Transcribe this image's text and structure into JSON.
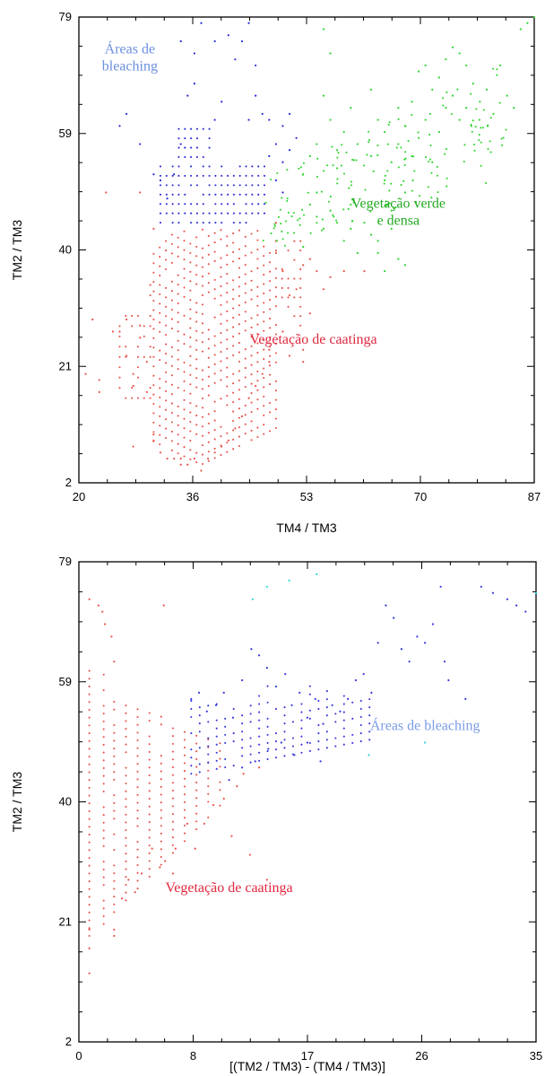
{
  "chart_data": [
    {
      "type": "scatter",
      "xlabel": "TM4 / TM3",
      "ylabel": "TM2 / TM3",
      "xlim": [
        20,
        87
      ],
      "ylim": [
        2,
        79
      ],
      "xticks": [
        "20",
        "36",
        "53",
        "70",
        "87"
      ],
      "yticks": [
        "2",
        "21",
        "40",
        "59",
        "79"
      ],
      "grid": false,
      "legend": "none",
      "annotations": [
        {
          "text_lines": [
            "Áreas de",
            "bleaching"
          ],
          "x": 27.5,
          "y": 73,
          "color": "#6b8fe0"
        },
        {
          "text_lines": [
            "Vegetação verde",
            "e densa"
          ],
          "x": 67,
          "y": 47.5,
          "color": "#22a822"
        },
        {
          "text_lines": [
            "Vegetação de caatinga"
          ],
          "x": 54.5,
          "y": 25,
          "color": "#e0283f"
        }
      ],
      "series": [
        {
          "color": "#e8534a",
          "cloud": "caatinga",
          "points": [
            [
              21,
              20
            ],
            [
              22,
              29
            ],
            [
              23,
              17
            ],
            [
              23,
              19
            ],
            [
              24,
              50
            ],
            [
              25,
              27
            ],
            [
              26,
              27
            ],
            [
              27,
              29
            ],
            [
              27,
              23
            ],
            [
              28,
              20
            ],
            [
              28,
              18
            ],
            [
              28,
              8
            ],
            [
              29,
              50
            ],
            [
              29,
              26
            ],
            [
              29,
              28
            ],
            [
              30,
              22
            ],
            [
              30,
              17
            ],
            [
              31,
              44
            ],
            [
              31,
              10
            ],
            [
              31,
              9
            ],
            [
              32,
              7
            ],
            [
              33,
              6
            ],
            [
              34,
              6
            ],
            [
              35,
              6
            ],
            [
              35,
              5
            ],
            [
              36,
              5
            ],
            [
              37,
              6
            ],
            [
              38,
              4
            ],
            [
              39,
              6
            ],
            [
              40,
              7
            ],
            [
              41,
              8
            ],
            [
              42,
              9
            ],
            [
              43,
              11
            ],
            [
              44,
              13
            ],
            [
              45,
              16
            ],
            [
              46,
              18
            ],
            [
              47,
              20
            ],
            [
              48,
              22
            ],
            [
              48,
              24
            ],
            [
              49,
              25
            ],
            [
              50,
              27
            ],
            [
              51,
              23
            ],
            [
              53,
              22
            ],
            [
              53,
              24
            ],
            [
              54,
              30
            ],
            [
              56,
              34
            ],
            [
              57,
              36
            ],
            [
              59,
              37
            ],
            [
              62,
              37
            ],
            [
              49,
              40
            ],
            [
              49,
              45
            ],
            [
              50,
              37
            ],
            [
              51,
              33
            ],
            [
              52,
              34
            ],
            [
              53,
              38
            ],
            [
              54,
              39
            ],
            [
              55,
              37
            ]
          ]
        },
        {
          "color": "#2a2ad8",
          "cloud": "bleaching",
          "points": [
            [
              26,
              61
            ],
            [
              27,
              63
            ],
            [
              29,
              58
            ],
            [
              31,
              53
            ],
            [
              32,
              52
            ],
            [
              33,
              49
            ],
            [
              34,
              53
            ],
            [
              35,
              58
            ],
            [
              35,
              75
            ],
            [
              36,
              66
            ],
            [
              37,
              73
            ],
            [
              37,
              68
            ],
            [
              38,
              78
            ],
            [
              40,
              75
            ],
            [
              40,
              62
            ],
            [
              41,
              65
            ],
            [
              42,
              76
            ],
            [
              43,
              72
            ],
            [
              44,
              75
            ],
            [
              45,
              78
            ],
            [
              45,
              62
            ],
            [
              46,
              71
            ],
            [
              46,
              66
            ],
            [
              47,
              63
            ],
            [
              48,
              62
            ],
            [
              49,
              58
            ],
            [
              50,
              61
            ],
            [
              50,
              55
            ],
            [
              51,
              57
            ],
            [
              51,
              63
            ],
            [
              52,
              59
            ],
            [
              48,
              56
            ],
            [
              49,
              52
            ],
            [
              50,
              50
            ]
          ]
        },
        {
          "color": "#2ed42e",
          "cloud": "vegetacao",
          "points": [
            [
              53,
              53
            ],
            [
              54,
              56
            ],
            [
              55,
              50
            ],
            [
              55,
              58
            ],
            [
              56,
              77
            ],
            [
              56,
              66
            ],
            [
              57,
              62
            ],
            [
              57,
              73
            ],
            [
              58,
              57
            ],
            [
              58,
              54
            ],
            [
              59,
              60
            ],
            [
              60,
              48
            ],
            [
              60,
              64
            ],
            [
              61,
              58
            ],
            [
              62,
              45
            ],
            [
              63,
              56
            ],
            [
              63,
              67
            ],
            [
              64,
              62
            ],
            [
              64,
              42
            ],
            [
              65,
              60
            ],
            [
              65,
              52
            ],
            [
              66,
              55
            ],
            [
              66,
              47
            ],
            [
              67,
              64
            ],
            [
              67,
              58
            ],
            [
              68,
              61
            ],
            [
              68,
              50
            ],
            [
              69,
              65
            ],
            [
              69,
              56
            ],
            [
              70,
              70
            ],
            [
              70,
              59
            ],
            [
              71,
              71
            ],
            [
              71,
              62
            ],
            [
              72,
              67
            ],
            [
              72,
              55
            ],
            [
              73,
              69
            ],
            [
              73,
              60
            ],
            [
              74,
              72
            ],
            [
              74,
              64
            ],
            [
              75,
              74
            ],
            [
              75,
              66
            ],
            [
              76,
              73
            ],
            [
              76,
              62
            ],
            [
              77,
              71
            ],
            [
              77,
              64
            ],
            [
              78,
              68
            ],
            [
              79,
              65
            ],
            [
              80,
              67
            ],
            [
              81,
              63
            ],
            [
              82,
              71
            ],
            [
              83,
              66
            ],
            [
              84,
              64
            ],
            [
              85,
              77
            ],
            [
              86,
              78
            ],
            [
              87,
              79
            ],
            [
              60,
              44
            ],
            [
              61,
              40
            ],
            [
              59,
              42
            ],
            [
              58,
              45
            ],
            [
              57,
              47
            ],
            [
              56,
              44
            ],
            [
              55,
              46
            ],
            [
              54,
              48
            ],
            [
              53,
              41
            ],
            [
              66,
              44
            ],
            [
              67,
              39
            ],
            [
              68,
              38
            ],
            [
              65,
              37
            ],
            [
              64,
              40
            ],
            [
              63,
              43
            ]
          ]
        }
      ]
    },
    {
      "type": "scatter",
      "xlabel": "[(TM2 / TM3) - (TM4 / TM3)]",
      "ylabel": "TM2 / TM3",
      "xlim": [
        0,
        35
      ],
      "ylim": [
        2,
        79
      ],
      "xticks": [
        "0",
        "8",
        "17",
        "26",
        "35"
      ],
      "yticks": [
        "2",
        "21",
        "40",
        "59",
        "79"
      ],
      "grid": false,
      "legend": "none",
      "annotations": [
        {
          "text_lines": [
            "Áreas de bleaching"
          ],
          "x": 26.5,
          "y": 52,
          "color": "#7a9be6"
        },
        {
          "text_lines": [
            "Vegetação de caatinga"
          ],
          "x": 11.5,
          "y": 26,
          "color": "#e0283f"
        }
      ],
      "series": [
        {
          "color": "#e8534a",
          "cloud": "caatinga",
          "points": [
            [
              0.8,
              73
            ],
            [
              0.8,
              17
            ],
            [
              0.8,
              13
            ],
            [
              0.8,
              20
            ],
            [
              1.5,
              72
            ],
            [
              1.8,
              71
            ],
            [
              2,
              69
            ],
            [
              2.5,
              67
            ],
            [
              2.7,
              63
            ],
            [
              2.7,
              20
            ],
            [
              2.7,
              19
            ],
            [
              3.3,
              25
            ],
            [
              3.8,
              28
            ],
            [
              4.3,
              26
            ],
            [
              4.8,
              29
            ],
            [
              5.6,
              33
            ],
            [
              6.2,
              30
            ],
            [
              6.5,
              72
            ],
            [
              6.6,
              31
            ],
            [
              7.2,
              29
            ],
            [
              7.4,
              33
            ],
            [
              8.3,
              37
            ],
            [
              8.9,
              33
            ],
            [
              9.6,
              37
            ],
            [
              10.3,
              40
            ],
            [
              11.1,
              41
            ],
            [
              11.7,
              35
            ],
            [
              12.1,
              43
            ],
            [
              12.6,
              45
            ],
            [
              13.1,
              32
            ],
            [
              13.8,
              46
            ],
            [
              14.4,
              28
            ]
          ]
        },
        {
          "color": "#3636dc",
          "cloud": "bleaching",
          "points": [
            [
              8.6,
              57
            ],
            [
              9.2,
              58
            ],
            [
              9.8,
              55
            ],
            [
              10.5,
              56
            ],
            [
              11.1,
              58
            ],
            [
              11.8,
              54
            ],
            [
              12.5,
              60
            ],
            [
              13.2,
              65
            ],
            [
              13.8,
              64
            ],
            [
              14.4,
              62
            ],
            [
              15.1,
              59
            ],
            [
              15.8,
              61
            ],
            [
              16.3,
              56
            ],
            [
              16.9,
              58
            ],
            [
              17.5,
              54
            ],
            [
              18.1,
              57
            ],
            [
              18.7,
              53
            ],
            [
              19.4,
              56
            ],
            [
              20,
              55
            ],
            [
              20.6,
              57
            ],
            [
              21.2,
              60
            ],
            [
              21.8,
              61
            ],
            [
              22.4,
              58
            ],
            [
              22.9,
              66
            ],
            [
              23.5,
              72
            ],
            [
              24.1,
              70
            ],
            [
              24.7,
              65
            ],
            [
              25.3,
              63
            ],
            [
              25.9,
              67
            ],
            [
              26.5,
              66
            ],
            [
              27.1,
              69
            ],
            [
              27.7,
              75
            ],
            [
              28,
              63
            ],
            [
              28.3,
              60
            ],
            [
              29.6,
              57
            ],
            [
              30.8,
              75
            ],
            [
              31.7,
              74
            ],
            [
              32.8,
              73
            ],
            [
              33.5,
              72
            ],
            [
              34.2,
              71
            ],
            [
              12.5,
              46
            ],
            [
              13.5,
              47
            ],
            [
              14.5,
              49
            ],
            [
              15.5,
              50
            ],
            [
              16.5,
              48
            ],
            [
              17.5,
              50
            ],
            [
              18.5,
              47
            ],
            [
              11.5,
              44
            ]
          ]
        },
        {
          "color": "#2fd4df",
          "cloud": "bleaching-cyan",
          "points": [
            [
              13.3,
              73
            ],
            [
              14.4,
              75
            ],
            [
              16.1,
              76
            ],
            [
              18.2,
              77
            ],
            [
              22.2,
              48
            ],
            [
              26.5,
              50
            ],
            [
              35,
              74
            ]
          ]
        }
      ]
    }
  ]
}
